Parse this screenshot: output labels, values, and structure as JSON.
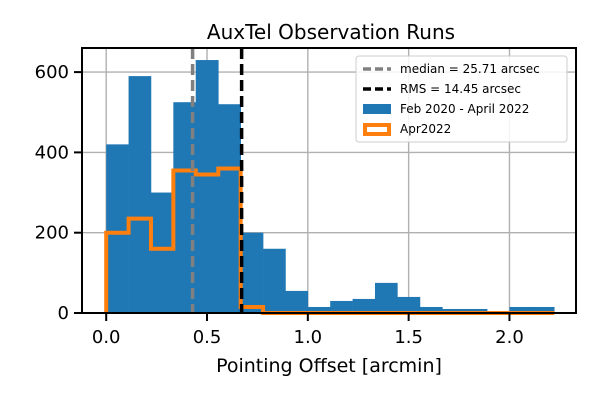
{
  "chart_data": {
    "type": "bar",
    "title": "AuxTel Observation Runs",
    "xlabel": "Pointing Offset [arcmin]",
    "ylabel": "",
    "xlim": [
      -0.12,
      2.33
    ],
    "ylim": [
      0,
      660
    ],
    "xticks": [
      0.0,
      0.5,
      1.0,
      1.5,
      2.0
    ],
    "xtick_labels": [
      "0.0",
      "0.5",
      "1.0",
      "1.5",
      "2.0"
    ],
    "yticks": [
      0,
      200,
      400,
      600
    ],
    "ytick_labels": [
      "0",
      "200",
      "400",
      "600"
    ],
    "grid": true,
    "legend_position": "top-right",
    "series": [
      {
        "name": "Feb 2020 - April 2022",
        "style": "filled-histogram",
        "color": "#1f77b4",
        "bin_edges": [
          0.0,
          0.111,
          0.222,
          0.333,
          0.444,
          0.556,
          0.667,
          0.778,
          0.889,
          1.0,
          1.111,
          1.222,
          1.333,
          1.444,
          1.556,
          1.667,
          1.778,
          1.889,
          2.0,
          2.111,
          2.222
        ],
        "counts": [
          420,
          590,
          300,
          525,
          630,
          520,
          200,
          160,
          55,
          15,
          30,
          35,
          75,
          40,
          15,
          10,
          10,
          5,
          15,
          15
        ]
      },
      {
        "name": "Apr2022",
        "style": "step-histogram",
        "color": "#ff7f0e",
        "bin_edges": [
          0.0,
          0.111,
          0.222,
          0.333,
          0.444,
          0.556,
          0.667,
          0.778,
          0.889,
          1.0,
          1.111,
          1.222,
          1.333,
          1.444,
          1.556,
          1.667,
          1.778,
          1.889,
          2.0,
          2.111,
          2.222
        ],
        "counts": [
          200,
          235,
          160,
          355,
          345,
          360,
          15,
          0,
          0,
          0,
          0,
          0,
          0,
          0,
          0,
          0,
          0,
          0,
          0,
          0
        ]
      }
    ],
    "vlines": [
      {
        "label": "median = 25.71 arcsec",
        "x": 0.4285,
        "color": "#808080",
        "style": "dashed"
      },
      {
        "label": "RMS = 14.45 arcsec",
        "x": 0.6717,
        "color": "#000000",
        "style": "dashed"
      }
    ]
  }
}
